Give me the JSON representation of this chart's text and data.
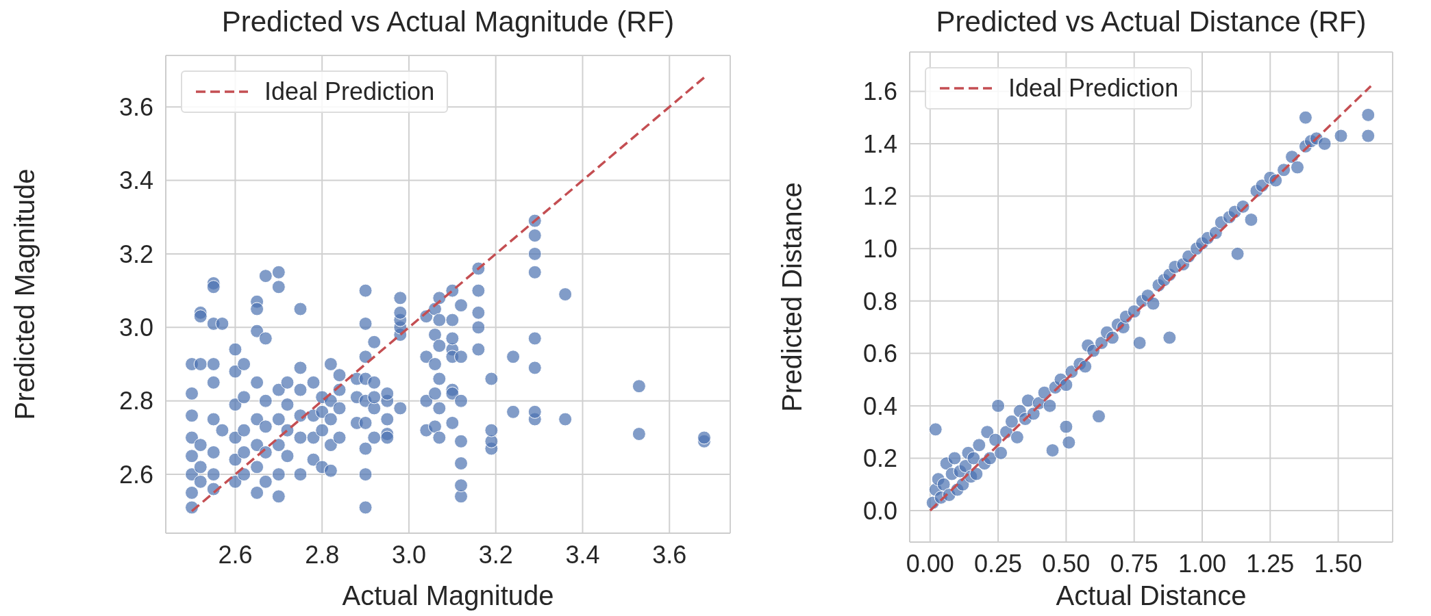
{
  "chart_data": [
    {
      "type": "scatter",
      "title": "Predicted vs Actual Magnitude (RF)",
      "xlabel": "Actual Magnitude",
      "ylabel": "Predicted Magnitude",
      "xlim": [
        2.44,
        3.74
      ],
      "ylim": [
        2.44,
        3.74
      ],
      "xticks": [
        2.6,
        2.8,
        {
          "value": 3.0,
          "label": "3.0"
        },
        3.2,
        3.4,
        3.6
      ],
      "yticks": [
        2.6,
        2.8,
        {
          "value": 3.0,
          "label": "3.0"
        },
        3.2,
        3.4,
        3.6
      ],
      "grid": true,
      "legend": "top left",
      "series": [
        {
          "type": "scatter",
          "color": "#4c72b0",
          "marker": "circle",
          "x": [
            2.5,
            2.5,
            2.5,
            2.5,
            2.5,
            2.5,
            2.5,
            2.5,
            2.52,
            2.52,
            2.52,
            2.52,
            2.52,
            2.52,
            2.55,
            2.55,
            2.55,
            2.55,
            2.55,
            2.55,
            2.55,
            2.55,
            2.55,
            2.57,
            2.57,
            2.6,
            2.6,
            2.6,
            2.6,
            2.6,
            2.6,
            2.62,
            2.62,
            2.62,
            2.62,
            2.62,
            2.65,
            2.65,
            2.65,
            2.65,
            2.65,
            2.65,
            2.65,
            2.65,
            2.67,
            2.67,
            2.67,
            2.67,
            2.67,
            2.67,
            2.7,
            2.7,
            2.7,
            2.7,
            2.7,
            2.7,
            2.7,
            2.72,
            2.72,
            2.72,
            2.72,
            2.75,
            2.75,
            2.75,
            2.75,
            2.75,
            2.75,
            2.78,
            2.78,
            2.78,
            2.78,
            2.8,
            2.8,
            2.8,
            2.8,
            2.82,
            2.82,
            2.82,
            2.82,
            2.82,
            2.84,
            2.84,
            2.84,
            2.84,
            2.88,
            2.88,
            2.88,
            2.9,
            2.9,
            2.9,
            2.9,
            2.9,
            2.9,
            2.9,
            2.9,
            2.9,
            2.92,
            2.92,
            2.92,
            2.92,
            2.92,
            2.95,
            2.95,
            2.95,
            2.95,
            2.95,
            2.98,
            2.98,
            2.98,
            2.98,
            2.98,
            2.98,
            3.04,
            3.04,
            3.04,
            3.04,
            3.06,
            3.06,
            3.06,
            3.06,
            3.06,
            3.07,
            3.07,
            3.07,
            3.07,
            3.07,
            3.07,
            3.1,
            3.1,
            3.1,
            3.1,
            3.1,
            3.1,
            3.1,
            3.1,
            3.12,
            3.12,
            3.12,
            3.12,
            3.12,
            3.12,
            3.12,
            3.16,
            3.16,
            3.16,
            3.16,
            3.16,
            3.19,
            3.19,
            3.19,
            3.19,
            3.24,
            3.24,
            3.29,
            3.29,
            3.29,
            3.29,
            3.29,
            3.29,
            3.29,
            3.29,
            3.36,
            3.36,
            3.53,
            3.53,
            3.68,
            3.68
          ],
          "values": [
            2.51,
            2.55,
            2.6,
            2.65,
            2.7,
            2.76,
            2.82,
            2.9,
            2.58,
            2.62,
            3.04,
            3.03,
            2.9,
            2.68,
            2.56,
            2.6,
            2.66,
            2.75,
            2.85,
            2.9,
            3.01,
            3.12,
            3.11,
            3.01,
            2.72,
            2.58,
            2.64,
            2.7,
            2.79,
            2.88,
            2.94,
            2.6,
            2.66,
            2.72,
            2.81,
            2.9,
            2.62,
            2.68,
            2.75,
            2.85,
            2.99,
            3.07,
            3.05,
            2.55,
            2.58,
            2.66,
            2.73,
            2.8,
            3.14,
            2.97,
            2.6,
            2.68,
            2.75,
            2.83,
            3.15,
            3.11,
            2.54,
            2.65,
            2.72,
            2.79,
            2.85,
            2.6,
            2.7,
            2.76,
            2.83,
            3.05,
            2.89,
            2.64,
            2.7,
            2.76,
            2.85,
            2.62,
            2.72,
            2.77,
            2.81,
            2.68,
            2.75,
            2.8,
            2.9,
            2.61,
            2.7,
            2.78,
            2.87,
            2.83,
            2.74,
            2.81,
            2.86,
            2.51,
            2.6,
            2.67,
            2.74,
            2.8,
            2.86,
            2.92,
            3.01,
            3.1,
            2.7,
            2.78,
            2.85,
            2.96,
            2.81,
            2.71,
            2.8,
            2.75,
            2.7,
            2.82,
            2.98,
            3.0,
            3.02,
            3.08,
            3.04,
            2.78,
            2.72,
            2.8,
            2.92,
            3.03,
            2.73,
            2.82,
            2.9,
            2.98,
            3.05,
            2.7,
            2.78,
            2.86,
            2.95,
            3.02,
            3.08,
            2.74,
            2.83,
            2.94,
            3.02,
            2.92,
            2.82,
            2.97,
            3.1,
            2.54,
            2.57,
            2.63,
            2.69,
            2.8,
            2.92,
            3.06,
            2.94,
            3.0,
            3.04,
            3.1,
            3.16,
            2.67,
            2.69,
            2.72,
            2.86,
            2.77,
            2.92,
            2.75,
            2.77,
            2.89,
            2.97,
            3.15,
            3.2,
            3.25,
            3.29,
            2.75,
            3.09,
            2.71,
            2.84,
            2.69,
            2.7
          ]
        },
        {
          "type": "line",
          "name": "Ideal Prediction",
          "color": "#c44e52",
          "line_style": "dashed",
          "x": [
            2.5,
            3.68
          ],
          "values": [
            2.5,
            3.68
          ]
        }
      ]
    },
    {
      "type": "scatter",
      "title": "Predicted vs Actual Distance (RF)",
      "xlabel": "Actual Distance",
      "ylabel": "Predicted Distance",
      "xlim": [
        -0.075,
        1.7
      ],
      "ylim": [
        -0.12,
        1.75
      ],
      "xticks": [
        {
          "value": 0,
          "label": "0.00"
        },
        0.25,
        {
          "value": 0.5,
          "label": "0.50"
        },
        0.75,
        {
          "value": 1,
          "label": "1.00"
        },
        1.25,
        {
          "value": 1.5,
          "label": "1.50"
        }
      ],
      "yticks": [
        {
          "value": 0,
          "label": "0.0"
        },
        0.2,
        0.4,
        0.6,
        0.8,
        {
          "value": 1,
          "label": "1.0"
        },
        1.2,
        1.4,
        1.6
      ],
      "grid": true,
      "legend": "top left",
      "series": [
        {
          "type": "scatter",
          "color": "#4c72b0",
          "marker": "circle",
          "x": [
            0.01,
            0.02,
            0.02,
            0.03,
            0.04,
            0.05,
            0.06,
            0.07,
            0.08,
            0.09,
            0.1,
            0.11,
            0.12,
            0.13,
            0.14,
            0.15,
            0.16,
            0.17,
            0.18,
            0.2,
            0.21,
            0.22,
            0.24,
            0.25,
            0.26,
            0.28,
            0.3,
            0.32,
            0.33,
            0.35,
            0.36,
            0.38,
            0.4,
            0.42,
            0.44,
            0.45,
            0.46,
            0.48,
            0.5,
            0.5,
            0.51,
            0.52,
            0.55,
            0.57,
            0.58,
            0.6,
            0.62,
            0.63,
            0.65,
            0.67,
            0.69,
            0.71,
            0.72,
            0.75,
            0.77,
            0.78,
            0.8,
            0.82,
            0.84,
            0.86,
            0.88,
            0.88,
            0.9,
            0.93,
            0.95,
            0.98,
            1.0,
            1.02,
            1.05,
            1.07,
            1.1,
            1.12,
            1.13,
            1.15,
            1.18,
            1.2,
            1.22,
            1.25,
            1.27,
            1.3,
            1.33,
            1.35,
            1.38,
            1.38,
            1.4,
            1.42,
            1.45,
            1.51,
            1.61,
            1.61
          ],
          "values": [
            0.03,
            0.31,
            0.08,
            0.12,
            0.05,
            0.1,
            0.18,
            0.06,
            0.14,
            0.2,
            0.08,
            0.15,
            0.1,
            0.17,
            0.22,
            0.13,
            0.2,
            0.14,
            0.25,
            0.18,
            0.3,
            0.2,
            0.27,
            0.4,
            0.22,
            0.3,
            0.34,
            0.28,
            0.38,
            0.35,
            0.42,
            0.37,
            0.41,
            0.45,
            0.4,
            0.23,
            0.47,
            0.5,
            0.32,
            0.48,
            0.26,
            0.53,
            0.56,
            0.55,
            0.63,
            0.61,
            0.36,
            0.64,
            0.68,
            0.66,
            0.71,
            0.7,
            0.74,
            0.76,
            0.64,
            0.8,
            0.82,
            0.79,
            0.86,
            0.88,
            0.66,
            0.9,
            0.93,
            0.94,
            0.97,
            1.0,
            1.02,
            1.04,
            1.06,
            1.1,
            1.12,
            1.14,
            0.98,
            1.16,
            1.11,
            1.22,
            1.24,
            1.27,
            1.26,
            1.3,
            1.35,
            1.31,
            1.5,
            1.39,
            1.41,
            1.42,
            1.4,
            1.43,
            1.51,
            1.43
          ]
        },
        {
          "type": "line",
          "name": "Ideal Prediction",
          "color": "#c44e52",
          "line_style": "dashed",
          "x": [
            0,
            1.62
          ],
          "values": [
            0,
            1.62
          ]
        }
      ]
    }
  ]
}
